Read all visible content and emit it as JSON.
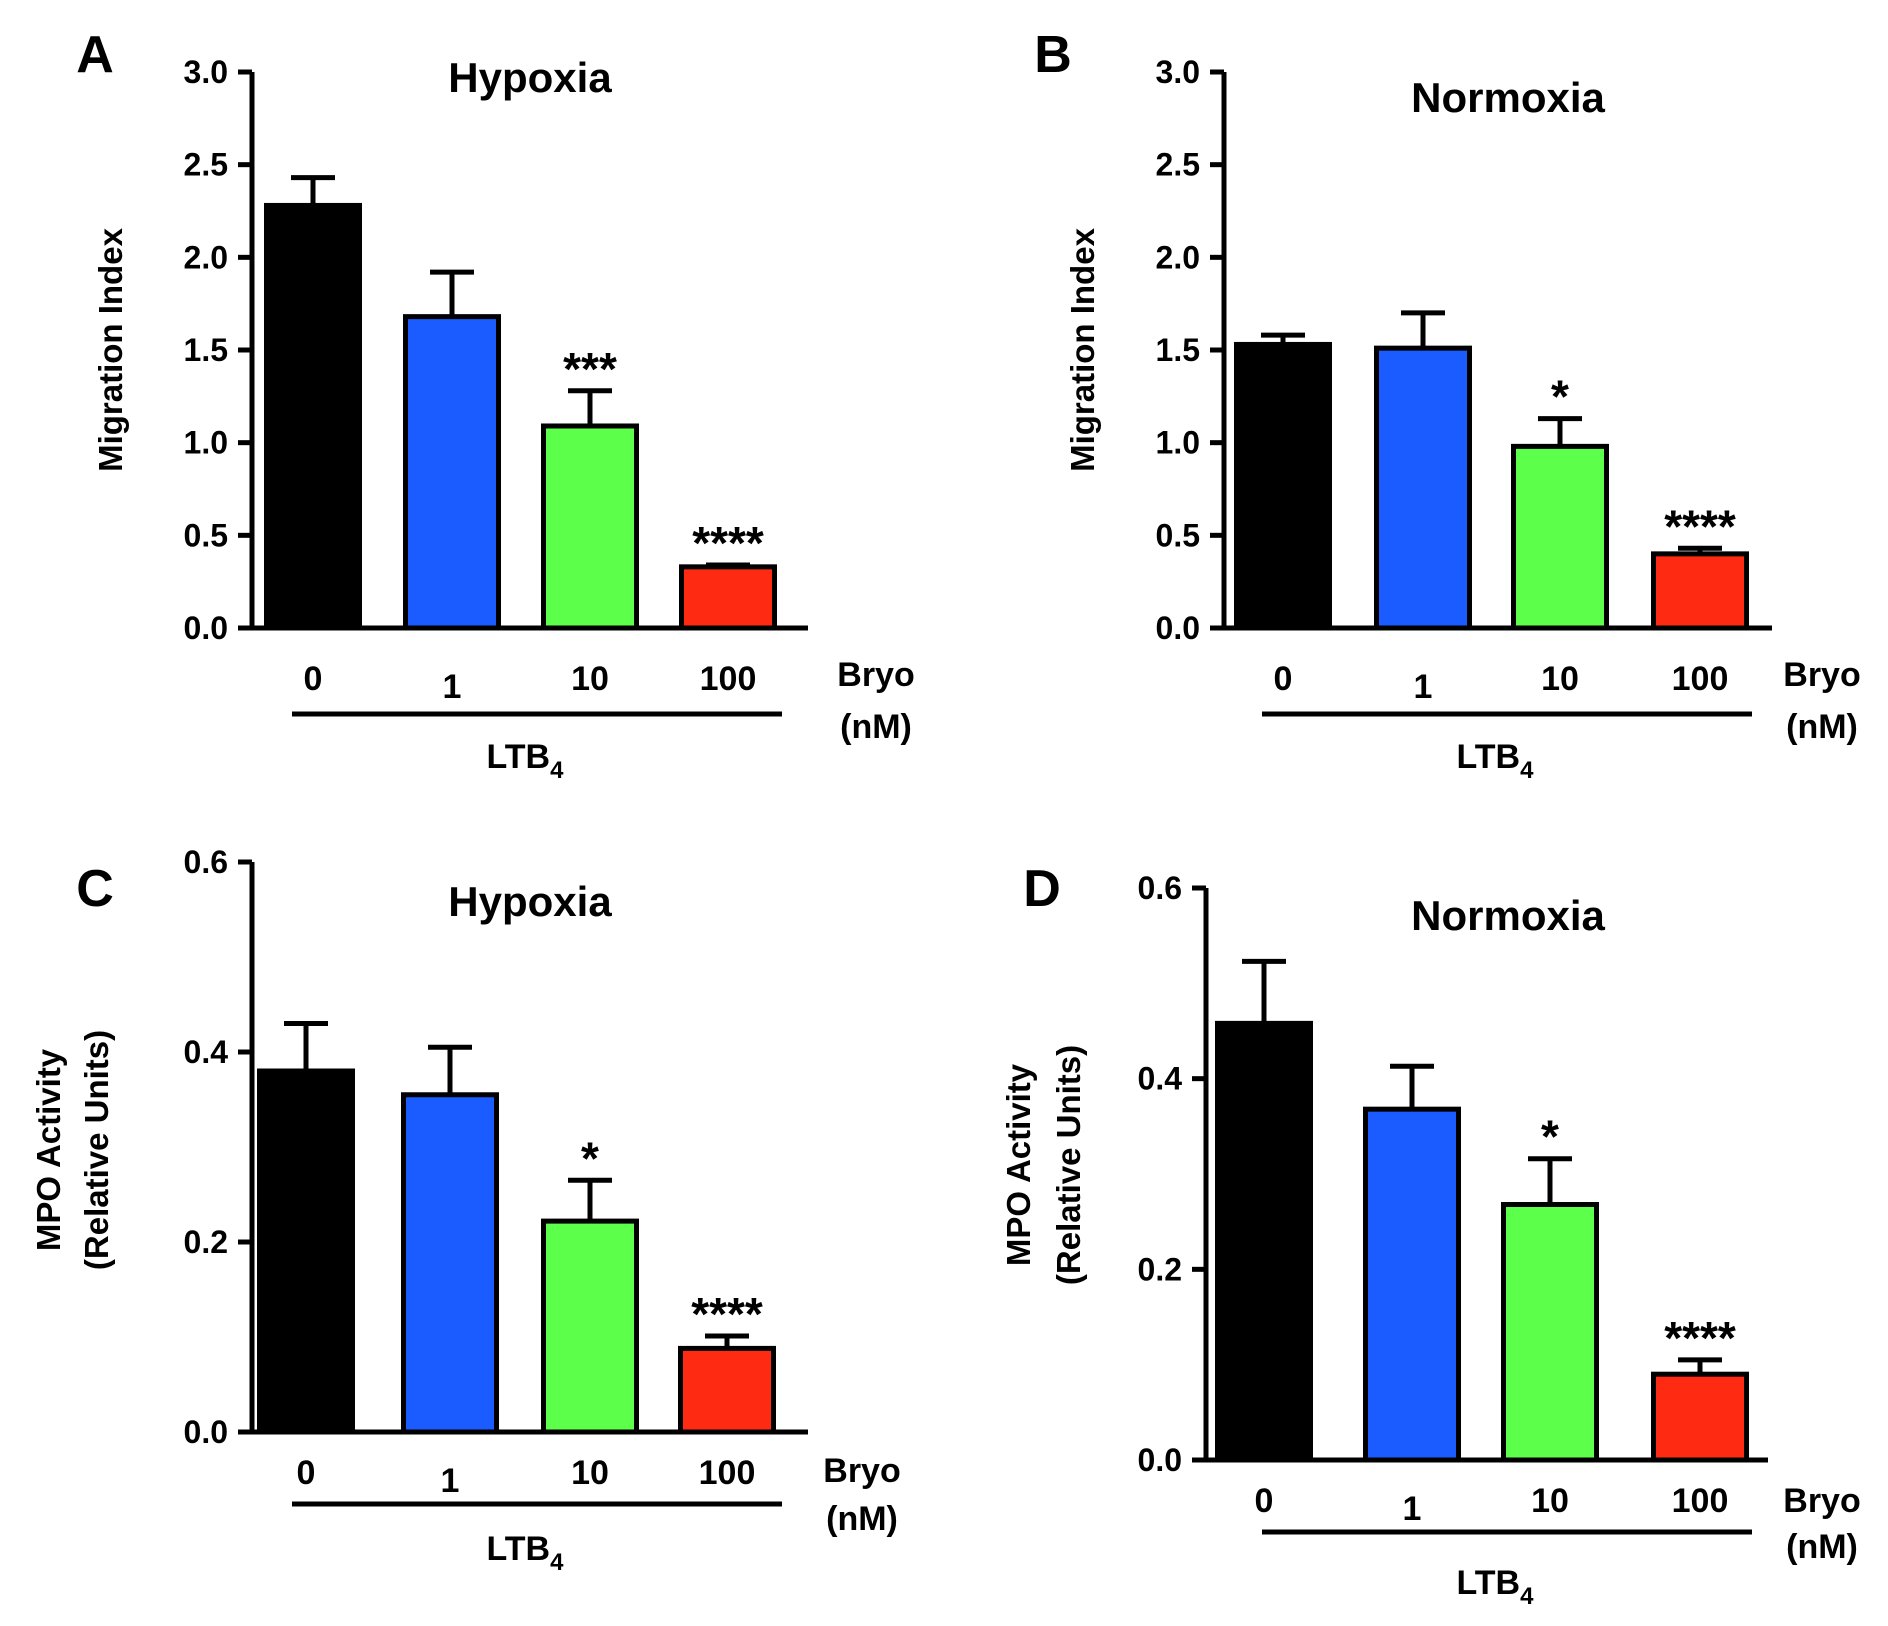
{
  "chart_data": [
    {
      "type": "bar",
      "panel": "A",
      "title": "Hypoxia",
      "ylabel": [
        "Migration Index"
      ],
      "ylim": [
        0,
        3.0
      ],
      "yticks": [
        "0.0",
        "0.5",
        "1.0",
        "1.5",
        "2.0",
        "2.5",
        "3.0"
      ],
      "categories": [
        "0",
        "1",
        "10",
        "100"
      ],
      "xlabel_unit": [
        "Bryo",
        "(nM)"
      ],
      "group_label": {
        "main": "LTB",
        "sub": "4"
      },
      "values": [
        2.28,
        1.68,
        1.09,
        0.33
      ],
      "errors": [
        0.15,
        0.24,
        0.19,
        0.01
      ],
      "significance": [
        "",
        "",
        "***",
        "****"
      ],
      "colors": [
        "#000000",
        "#1a5cff",
        "#5cff4a",
        "#ff2a12"
      ]
    },
    {
      "type": "bar",
      "panel": "B",
      "title": "Normoxia",
      "ylabel": [
        "Migration Index"
      ],
      "ylim": [
        0,
        3.0
      ],
      "yticks": [
        "0.0",
        "0.5",
        "1.0",
        "1.5",
        "2.0",
        "2.5",
        "3.0"
      ],
      "categories": [
        "0",
        "1",
        "10",
        "100"
      ],
      "xlabel_unit": [
        "Bryo",
        "(nM)"
      ],
      "group_label": {
        "main": "LTB",
        "sub": "4"
      },
      "values": [
        1.53,
        1.51,
        0.98,
        0.4
      ],
      "errors": [
        0.05,
        0.19,
        0.15,
        0.03
      ],
      "significance": [
        "",
        "",
        "*",
        "****"
      ],
      "colors": [
        "#000000",
        "#1a5cff",
        "#5cff4a",
        "#ff2a12"
      ]
    },
    {
      "type": "bar",
      "panel": "C",
      "title": "Hypoxia",
      "ylabel": [
        "MPO Activity",
        "(Relative Units)"
      ],
      "ylim": [
        0,
        0.6
      ],
      "yticks": [
        "0.0",
        "0.2",
        "0.4",
        "0.6"
      ],
      "categories": [
        "0",
        "1",
        "10",
        "100"
      ],
      "xlabel_unit": [
        "Bryo",
        "(nM)"
      ],
      "group_label": {
        "main": "LTB",
        "sub": "4"
      },
      "values": [
        0.38,
        0.355,
        0.222,
        0.088
      ],
      "errors": [
        0.05,
        0.05,
        0.043,
        0.013
      ],
      "significance": [
        "",
        "",
        "*",
        "****"
      ],
      "colors": [
        "#000000",
        "#1a5cff",
        "#5cff4a",
        "#ff2a12"
      ]
    },
    {
      "type": "bar",
      "panel": "D",
      "title": "Normoxia",
      "ylabel": [
        "MPO Activity",
        "(Relative Units)"
      ],
      "ylim": [
        0,
        0.6
      ],
      "yticks": [
        "0.0",
        "0.2",
        "0.4",
        "0.6"
      ],
      "categories": [
        "0",
        "1",
        "10",
        "100"
      ],
      "xlabel_unit": [
        "Bryo",
        "(nM)"
      ],
      "group_label": {
        "main": "LTB",
        "sub": "4"
      },
      "values": [
        0.458,
        0.368,
        0.268,
        0.09
      ],
      "errors": [
        0.065,
        0.045,
        0.048,
        0.015
      ],
      "significance": [
        "",
        "",
        "*",
        "****"
      ],
      "colors": [
        "#000000",
        "#1a5cff",
        "#5cff4a",
        "#ff2a12"
      ]
    }
  ]
}
